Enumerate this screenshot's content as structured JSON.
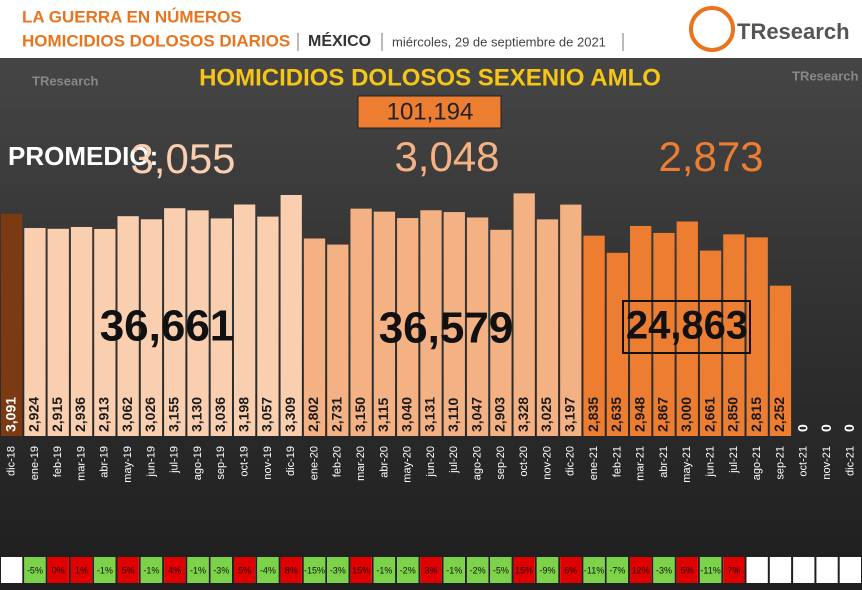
{
  "header": {
    "kicker": "LA GUERRA EN NÚMEROS",
    "topic": "HOMICIDIOS DOLOSOS DIARIOS",
    "place": "MÉXICO",
    "date": "miércoles, 29 de septiembre de 2021",
    "logo": "TResearch"
  },
  "chart_data": {
    "type": "bar",
    "title": "HOMICIDIOS DOLOSOS SEXENIO AMLO",
    "total": "101,194",
    "average_label": "PROMEDIO:",
    "averages": [
      "3,055",
      "3,048",
      "2,873"
    ],
    "year_totals": [
      "36,661",
      "36,579",
      "24,863"
    ],
    "categories": [
      "dic-18",
      "ene-19",
      "feb-19",
      "mar-19",
      "abr-19",
      "may-19",
      "jun-19",
      "jul-19",
      "ago-19",
      "sep-19",
      "oct-19",
      "nov-19",
      "dic-19",
      "ene-20",
      "feb-20",
      "mar-20",
      "abr-20",
      "may-20",
      "jun-20",
      "jul-20",
      "ago-20",
      "sep-20",
      "oct-20",
      "nov-20",
      "dic-20",
      "ene-21",
      "feb-21",
      "mar-21",
      "abr-21",
      "may-21",
      "jun-21",
      "jul-21",
      "ago-21",
      "sep-21",
      "oct-21",
      "nov-21",
      "dic-21"
    ],
    "values": [
      3091,
      2924,
      2915,
      2936,
      2913,
      3062,
      3026,
      3155,
      3130,
      3036,
      3198,
      3057,
      3309,
      2802,
      2731,
      3150,
      3115,
      3040,
      3131,
      3110,
      3047,
      2903,
      3328,
      3025,
      3197,
      2835,
      2635,
      2948,
      2867,
      3000,
      2661,
      2850,
      2815,
      2252,
      0,
      0,
      0
    ],
    "value_labels": [
      "3,091",
      "2,924",
      "2,915",
      "2,936",
      "2,913",
      "3,062",
      "3,026",
      "3,155",
      "3,130",
      "3,036",
      "3,198",
      "3,057",
      "3,309",
      "2,802",
      "2,731",
      "3,150",
      "3,115",
      "3,040",
      "3,131",
      "3,110",
      "3,047",
      "2,903",
      "3,328",
      "3,025",
      "3,197",
      "2,835",
      "2,635",
      "2,948",
      "2,867",
      "3,000",
      "2,661",
      "2,850",
      "2,815",
      "2,252",
      "0",
      "0",
      "0"
    ],
    "colors": [
      "#7b3a12",
      "#f9cfb0",
      "#f9cfb0",
      "#f9cfb0",
      "#f9cfb0",
      "#f9cfb0",
      "#f9cfb0",
      "#f9cfb0",
      "#f9cfb0",
      "#f9cfb0",
      "#f9cfb0",
      "#f9cfb0",
      "#f9cfb0",
      "#f4b183",
      "#f4b183",
      "#f4b183",
      "#f4b183",
      "#f4b183",
      "#f4b183",
      "#f4b183",
      "#f4b183",
      "#f4b183",
      "#f4b183",
      "#f4b183",
      "#f4b183",
      "#ed7d31",
      "#ed7d31",
      "#ed7d31",
      "#ed7d31",
      "#ed7d31",
      "#ed7d31",
      "#ed7d31",
      "#ed7d31",
      "#ed7d31",
      "#ed7d31",
      "#ed7d31",
      "#ed7d31"
    ],
    "change_values": [
      null,
      -5,
      0,
      1,
      -1,
      5,
      -1,
      4,
      -1,
      -3,
      5,
      -4,
      8,
      -15,
      -3,
      15,
      -1,
      -2,
      3,
      -1,
      -2,
      -5,
      15,
      -9,
      6,
      -11,
      -7,
      12,
      -3,
      5,
      -11,
      7,
      null,
      null,
      null,
      null,
      null
    ],
    "change_labels": [
      null,
      "-5%",
      "0%",
      "1%",
      "-1%",
      "5%",
      "-1%",
      "4%",
      "-1%",
      "-3%",
      "5%",
      "-4%",
      "8%",
      "-15%",
      "-3%",
      "15%",
      "-1%",
      "-2%",
      "3%",
      "-1%",
      "-2%",
      "-5%",
      "15%",
      "-9%",
      "6%",
      "-11%",
      "-7%",
      "12%",
      "-3%",
      "5%",
      "-11%",
      "7%",
      null,
      null,
      null,
      null,
      null
    ],
    "ylim": [
      500,
      3500
    ]
  }
}
